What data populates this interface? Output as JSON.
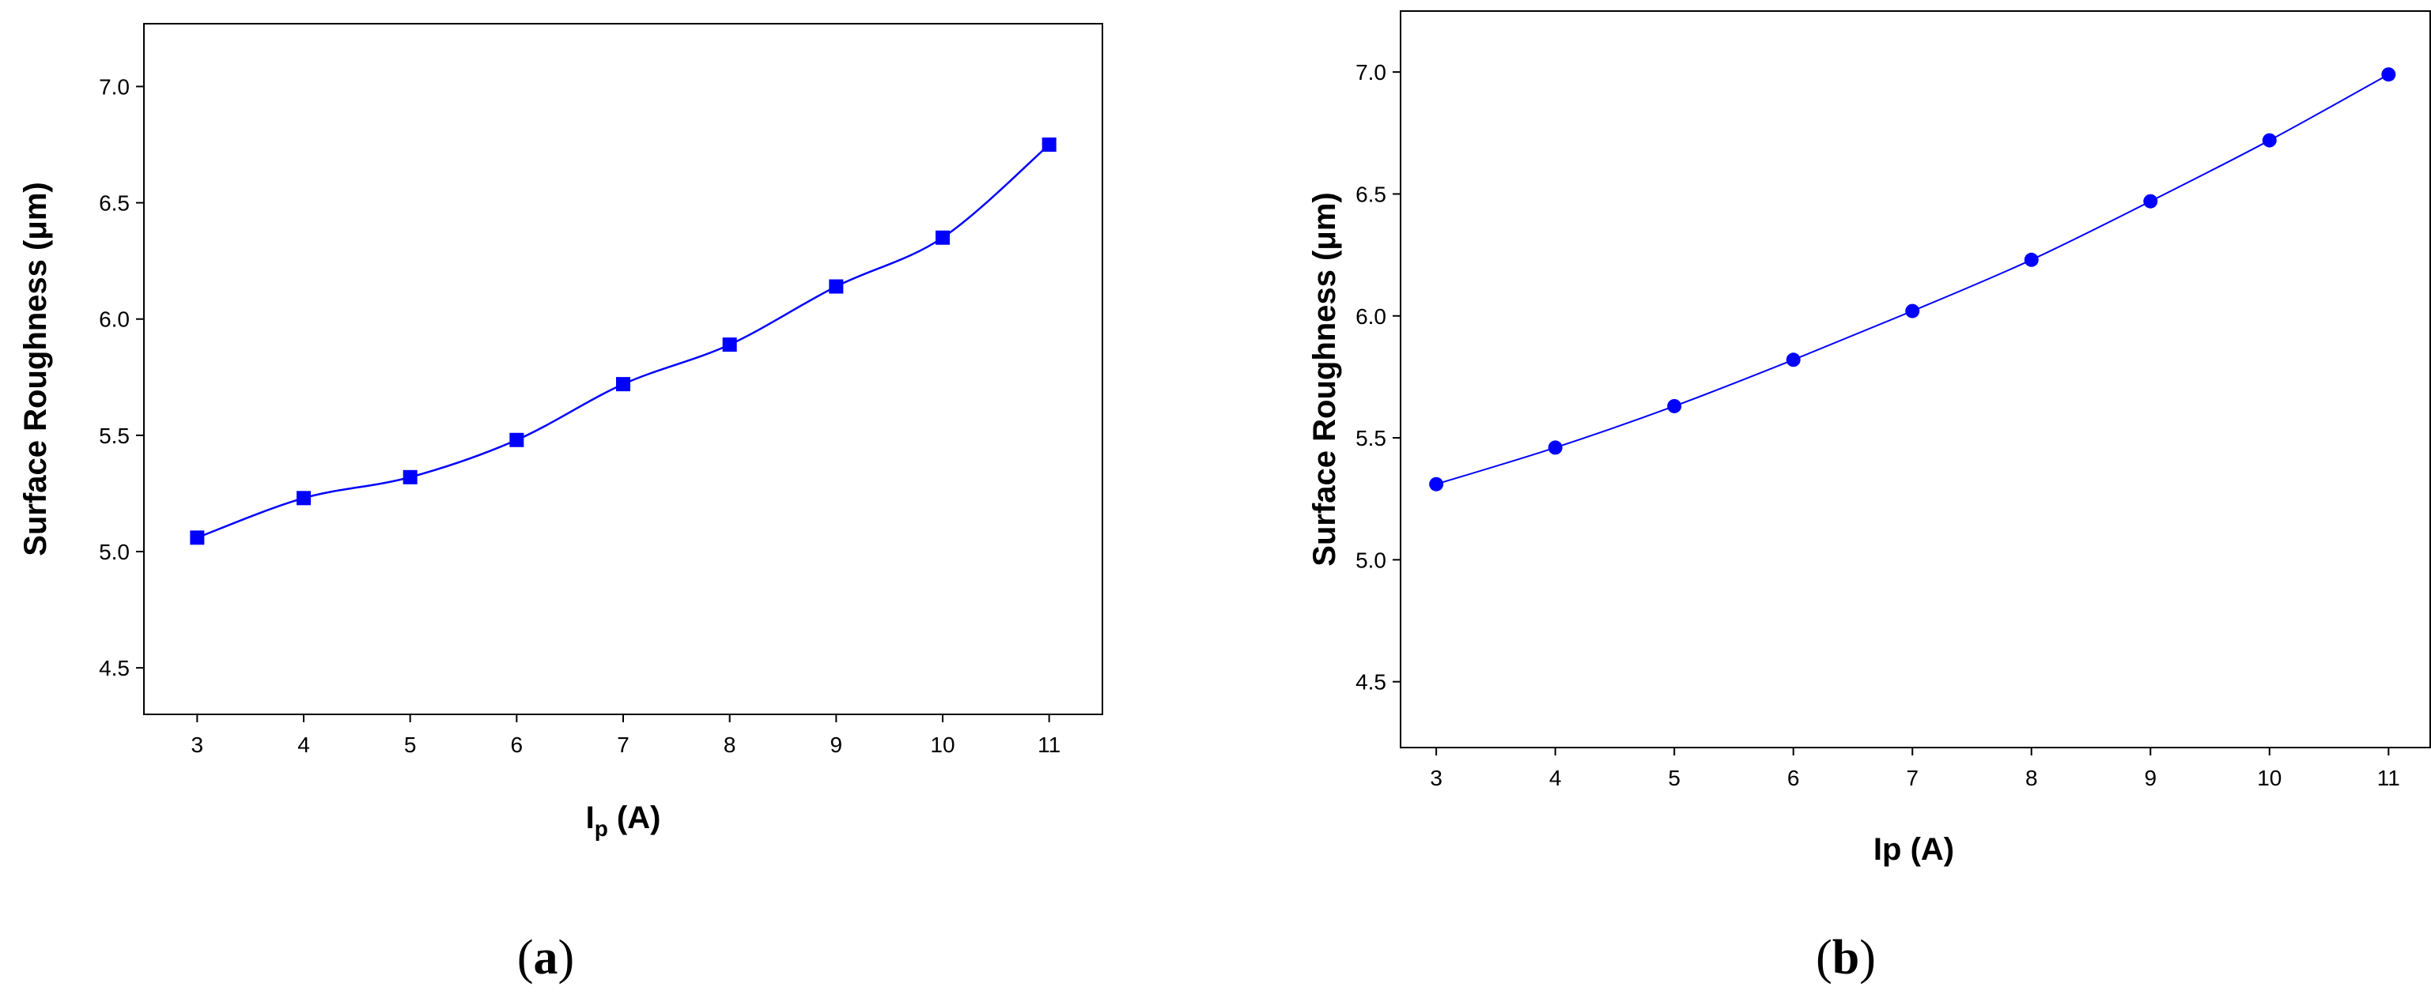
{
  "chart_data": [
    {
      "type": "line",
      "panel_label_open": "(",
      "panel_label_letter": "a",
      "panel_label_close": ")",
      "x": [
        3,
        4,
        5,
        6,
        7,
        8,
        9,
        10,
        11
      ],
      "series": [
        {
          "values": [
            5.06,
            5.23,
            5.32,
            5.48,
            5.72,
            5.89,
            6.14,
            6.35,
            6.75
          ],
          "color": "#0000ff",
          "marker": "square"
        }
      ],
      "xticks": [
        "3",
        "4",
        "5",
        "6",
        "7",
        "8",
        "9",
        "10",
        "11"
      ],
      "yticks": [
        "4.5",
        "5.0",
        "5.5",
        "6.0",
        "6.5",
        "7.0"
      ],
      "xlabel_main": "I",
      "xlabel_sub": "p",
      "xlabel_rest": " (A)",
      "ylabel": "Surface Roughness (μm)",
      "xlim": [
        2.5,
        11.5
      ],
      "ylim": [
        4.3,
        7.27
      ],
      "grid": false
    },
    {
      "type": "line",
      "panel_label_open": "(",
      "panel_label_letter": "b",
      "panel_label_close": ")",
      "x": [
        3,
        4,
        5,
        6,
        7,
        8,
        9,
        10,
        11
      ],
      "series": [
        {
          "values": [
            5.31,
            5.46,
            5.63,
            5.82,
            6.02,
            6.23,
            6.47,
            6.72,
            6.99
          ],
          "color": "#0000ff",
          "marker": "circle"
        }
      ],
      "xticks": [
        "3",
        "4",
        "5",
        "6",
        "7",
        "8",
        "9",
        "10",
        "11"
      ],
      "yticks": [
        "4.5",
        "5.0",
        "5.5",
        "6.0",
        "6.5",
        "7.0"
      ],
      "xlabel": "Ip (A)",
      "ylabel": "Surface Roughness (μm)",
      "xlim": [
        2.7,
        11.35
      ],
      "ylim": [
        4.23,
        7.25
      ],
      "grid": false
    }
  ]
}
